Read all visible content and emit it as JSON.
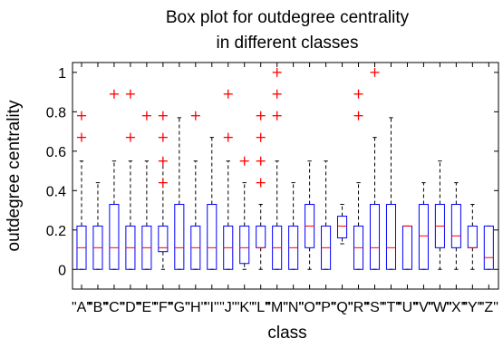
{
  "chart_data": {
    "type": "box",
    "title": [
      "Box plot for outdegree centrality",
      "in different classes"
    ],
    "xlabel": "class",
    "ylabel": "outdegree centrality",
    "ylim": [
      -0.1,
      1.05
    ],
    "yticks": [
      0,
      0.2,
      0.4,
      0.6,
      0.8,
      1
    ],
    "ytick_labels": [
      "0",
      "0.2",
      "0.4",
      "0.6",
      "0.8",
      "1"
    ],
    "colors": {
      "box": "#0000ff",
      "median": "#ff0000",
      "whisker": "#000000",
      "outlier": "#ff0000"
    },
    "categories": [
      "\"A\"",
      "\"B\"",
      "\"C\"",
      "\"D\"",
      "\"E\"",
      "\"F\"",
      "\"G\"",
      "\"H\"",
      "\"I\"",
      "\"J\"",
      "\"K\"",
      "\"L\"",
      "\"M\"",
      "\"N\"",
      "\"O\"",
      "\"P\"",
      "\"Q\"",
      "\"R\"",
      "\"S\"",
      "\"T\"",
      "\"U\"",
      "\"V\"",
      "\"W\"",
      "\"X\"",
      "\"Y\"",
      "\"Z\""
    ],
    "boxes": [
      {
        "min": 0,
        "q1": 0,
        "median": 0.11,
        "q3": 0.22,
        "max": 0.55,
        "outliers": [
          0.67,
          0.78
        ]
      },
      {
        "min": 0,
        "q1": 0,
        "median": 0.11,
        "q3": 0.22,
        "max": 0.44,
        "outliers": []
      },
      {
        "min": 0,
        "q1": 0,
        "median": 0.11,
        "q3": 0.33,
        "max": 0.55,
        "outliers": [
          0.89
        ]
      },
      {
        "min": 0,
        "q1": 0,
        "median": 0.11,
        "q3": 0.22,
        "max": 0.55,
        "outliers": [
          0.67,
          0.89
        ]
      },
      {
        "min": 0,
        "q1": 0,
        "median": 0.11,
        "q3": 0.22,
        "max": 0.55,
        "outliers": [
          0.78
        ]
      },
      {
        "min": 0,
        "q1": 0.09,
        "median": 0.11,
        "q3": 0.22,
        "max": 0.55,
        "outliers": [
          0.44,
          0.55,
          0.67,
          0.78
        ]
      },
      {
        "min": 0,
        "q1": 0,
        "median": 0.11,
        "q3": 0.33,
        "max": 0.77,
        "outliers": []
      },
      {
        "min": 0,
        "q1": 0,
        "median": 0.11,
        "q3": 0.22,
        "max": 0.55,
        "outliers": [
          0.78
        ]
      },
      {
        "min": 0,
        "q1": 0,
        "median": 0.11,
        "q3": 0.33,
        "max": 0.67,
        "outliers": []
      },
      {
        "min": 0,
        "q1": 0,
        "median": 0.11,
        "q3": 0.22,
        "max": 0.55,
        "outliers": [
          0.67,
          0.89
        ]
      },
      {
        "min": 0,
        "q1": 0.03,
        "median": 0.11,
        "q3": 0.22,
        "max": 0.44,
        "outliers": [
          0.55
        ]
      },
      {
        "min": 0,
        "q1": 0.11,
        "median": 0.11,
        "q3": 0.22,
        "max": 0.33,
        "outliers": [
          0.44,
          0.55,
          0.67,
          0.78
        ]
      },
      {
        "min": 0,
        "q1": 0,
        "median": 0.11,
        "q3": 0.22,
        "max": 0.55,
        "outliers": [
          0.78,
          0.89,
          1.0
        ]
      },
      {
        "min": 0,
        "q1": 0,
        "median": 0.11,
        "q3": 0.22,
        "max": 0.44,
        "outliers": []
      },
      {
        "min": 0,
        "q1": 0.11,
        "median": 0.22,
        "q3": 0.33,
        "max": 0.55,
        "outliers": []
      },
      {
        "min": 0,
        "q1": 0,
        "median": 0.11,
        "q3": 0.22,
        "max": 0.55,
        "outliers": []
      },
      {
        "min": 0.13,
        "q1": 0.16,
        "median": 0.22,
        "q3": 0.27,
        "max": 0.33,
        "outliers": []
      },
      {
        "min": 0,
        "q1": 0,
        "median": 0.11,
        "q3": 0.22,
        "max": 0.44,
        "outliers": [
          0.78,
          0.89
        ]
      },
      {
        "min": 0,
        "q1": 0,
        "median": 0.11,
        "q3": 0.33,
        "max": 0.67,
        "outliers": [
          1.0
        ]
      },
      {
        "min": 0,
        "q1": 0,
        "median": 0.11,
        "q3": 0.33,
        "max": 0.77,
        "outliers": []
      },
      {
        "min": 0,
        "q1": 0,
        "median": 0.22,
        "q3": 0.22,
        "max": 0.22,
        "outliers": []
      },
      {
        "min": 0,
        "q1": 0,
        "median": 0.17,
        "q3": 0.33,
        "max": 0.44,
        "outliers": []
      },
      {
        "min": 0,
        "q1": 0.11,
        "median": 0.22,
        "q3": 0.33,
        "max": 0.55,
        "outliers": []
      },
      {
        "min": 0,
        "q1": 0.11,
        "median": 0.17,
        "q3": 0.33,
        "max": 0.44,
        "outliers": []
      },
      {
        "min": 0,
        "q1": 0.11,
        "median": 0.11,
        "q3": 0.22,
        "max": 0.33,
        "outliers": []
      },
      {
        "min": 0,
        "q1": 0,
        "median": 0.06,
        "q3": 0.22,
        "max": 0.22,
        "outliers": []
      }
    ]
  }
}
